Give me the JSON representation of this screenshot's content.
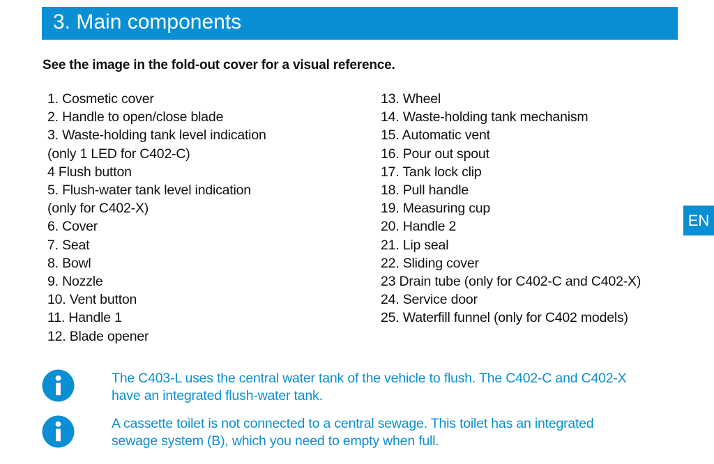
{
  "header": {
    "title": "3.  Main components"
  },
  "subtitle": "See the image in the fold-out cover for a visual reference.",
  "language_tab": "EN",
  "left_items": [
    "1. Cosmetic cover",
    "2. Handle to open/close blade",
    "3. Waste-holding tank level indication",
    "(only 1 LED for C402-C)",
    "4 Flush button",
    "5. Flush-water tank level indication",
    "(only for C402-X)",
    "6. Cover",
    "7. Seat",
    "8. Bowl",
    "9. Nozzle",
    "10. Vent button",
    "11. Handle 1",
    "12. Blade opener"
  ],
  "right_items": [
    "13. Wheel",
    "14. Waste-holding tank mechanism",
    "15. Automatic vent",
    "16. Pour out spout",
    "17. Tank lock clip",
    "18. Pull handle",
    "19. Measuring cup",
    "20. Handle 2",
    "21. Lip seal",
    "22. Sliding cover",
    "23 Drain tube (only for C402-C and C402-X)",
    "24. Service door",
    "25. Waterfill funnel (only for C402 models)"
  ],
  "notes": [
    {
      "icon": "info-icon",
      "lines": [
        "The C403-L uses the central water tank of the vehicle to flush. The C402-C and C402-X",
        "have an integrated flush-water tank."
      ]
    },
    {
      "icon": "info-icon",
      "lines": [
        "A cassette toilet is not connected to a central sewage. This toilet has an integrated",
        "sewage system (B), which you need to empty when full."
      ]
    }
  ],
  "colors": {
    "accent": "#0a8fd4",
    "text": "#111111"
  }
}
